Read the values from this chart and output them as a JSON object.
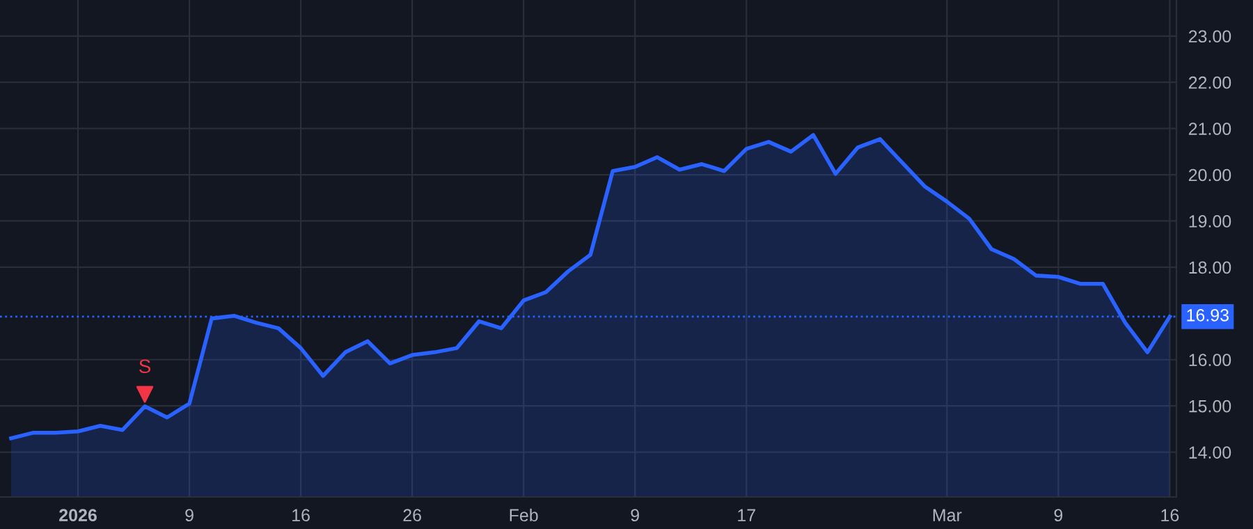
{
  "chart_data": {
    "type": "area",
    "categories": [
      null,
      null,
      null,
      "2026",
      null,
      null,
      null,
      null,
      "9",
      null,
      null,
      null,
      null,
      "16",
      null,
      null,
      null,
      null,
      "26",
      null,
      null,
      null,
      null,
      "Feb",
      null,
      null,
      null,
      null,
      "9",
      null,
      null,
      null,
      null,
      "17",
      null,
      null,
      null,
      null,
      null,
      null,
      null,
      null,
      "Mar",
      null,
      null,
      null,
      null,
      "9",
      null,
      null,
      null,
      null,
      "16"
    ],
    "series": [
      {
        "color": "#2962ff",
        "values": [
          14.3,
          14.42,
          14.42,
          14.45,
          14.57,
          14.48,
          14.99,
          14.75,
          15.05,
          16.89,
          16.95,
          16.8,
          16.68,
          16.25,
          15.65,
          16.16,
          16.4,
          15.92,
          16.1,
          16.16,
          16.25,
          16.83,
          16.68,
          17.28,
          17.46,
          17.91,
          18.27,
          20.08,
          20.17,
          20.38,
          20.11,
          20.23,
          20.08,
          20.56,
          20.71,
          20.5,
          20.86,
          20.02,
          20.59,
          20.77,
          20.26,
          19.75,
          19.42,
          19.05,
          18.39,
          18.18,
          17.82,
          17.79,
          17.64,
          17.64,
          16.8,
          16.16,
          16.93
        ]
      },
      {
        "type": "scatter",
        "color": "#f23645",
        "marker": "triangle",
        "values": [
          null,
          null,
          null,
          null,
          null,
          null,
          15.25,
          null,
          null,
          null,
          null,
          null,
          null,
          null,
          null,
          null,
          null,
          null,
          null,
          null,
          null,
          null,
          null,
          null,
          null,
          null,
          null,
          null,
          null,
          null,
          null,
          null,
          null,
          null,
          null,
          null,
          null,
          null,
          null,
          null,
          null,
          null,
          null,
          null,
          null,
          null,
          null,
          null,
          null,
          null,
          null,
          null,
          null
        ],
        "value_labels": [
          null,
          null,
          null,
          null,
          null,
          null,
          "S",
          null,
          null,
          null,
          null,
          null,
          null,
          null,
          null,
          null,
          null,
          null,
          null,
          null,
          null,
          null,
          null,
          null,
          null,
          null,
          null,
          null,
          null,
          null,
          null,
          null,
          null,
          null,
          null,
          null,
          null,
          null,
          null,
          null,
          null,
          null,
          null,
          null,
          null,
          null,
          null,
          null,
          null,
          null,
          null,
          null,
          null
        ]
      }
    ],
    "ylim": [
      13.03,
      23.78
    ],
    "yticks": [
      {
        "value": 14,
        "label": "14.00"
      },
      {
        "value": 15,
        "label": "15.00"
      },
      {
        "value": 16,
        "label": "16.00"
      },
      {
        "value": 18,
        "label": "18.00"
      },
      {
        "value": 19,
        "label": "19.00"
      },
      {
        "value": 20,
        "label": "20.00"
      },
      {
        "value": 21,
        "label": "21.00"
      },
      {
        "value": 22,
        "label": "22.00"
      },
      {
        "value": 23,
        "label": "23.00"
      }
    ],
    "ref_lines": [
      {
        "axis": "y",
        "value": 16.93,
        "label": "16.93",
        "color": "#2962ff",
        "line_style": "dotted"
      }
    ],
    "grid": true,
    "legend": false
  }
}
